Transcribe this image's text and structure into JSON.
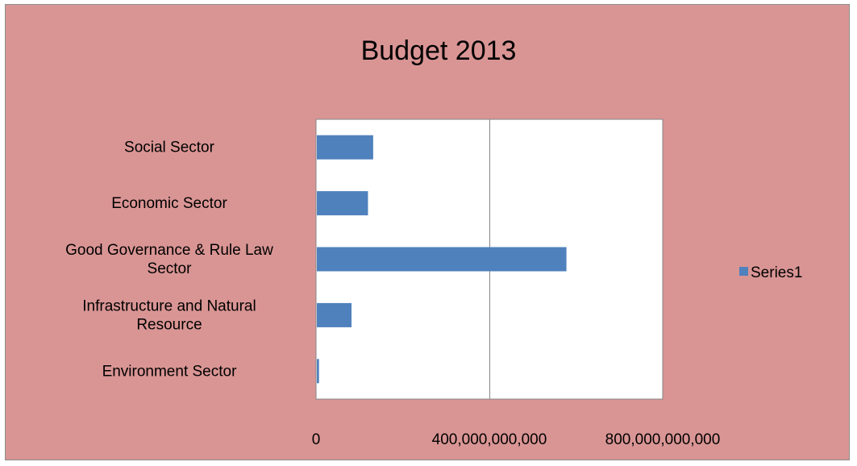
{
  "chart_data": {
    "type": "bar",
    "orientation": "horizontal",
    "title": "Budget 2013",
    "categories": [
      "Social Sector",
      "Economic Sector",
      "Good Governance &  Rule Law Sector",
      "Infrastructure and Natural Resource",
      "Environment Sector"
    ],
    "category_label_lines": [
      [
        "Social Sector"
      ],
      [
        "Economic Sector"
      ],
      [
        "Good Governance &  Rule Law",
        "Sector"
      ],
      [
        "Infrastructure and Natural",
        "Resource"
      ],
      [
        "Environment Sector"
      ]
    ],
    "series": [
      {
        "name": "Series1",
        "values": [
          130000000000,
          118000000000,
          576000000000,
          80000000000,
          5000000000
        ]
      }
    ],
    "xlim": [
      0,
      800000000000
    ],
    "x_tick_values": [
      0,
      400000000000,
      800000000000
    ],
    "x_tick_labels": [
      "0",
      "400,000,000,000",
      "800,000,000,000"
    ],
    "grid": "vertical major gridlines",
    "legend_position": "right",
    "colors": {
      "chart_background": "#d99594",
      "plot_background": "#ffffff",
      "bar": "#4f81bd",
      "gridline": "#868686",
      "border": "#8c8c8c"
    }
  }
}
